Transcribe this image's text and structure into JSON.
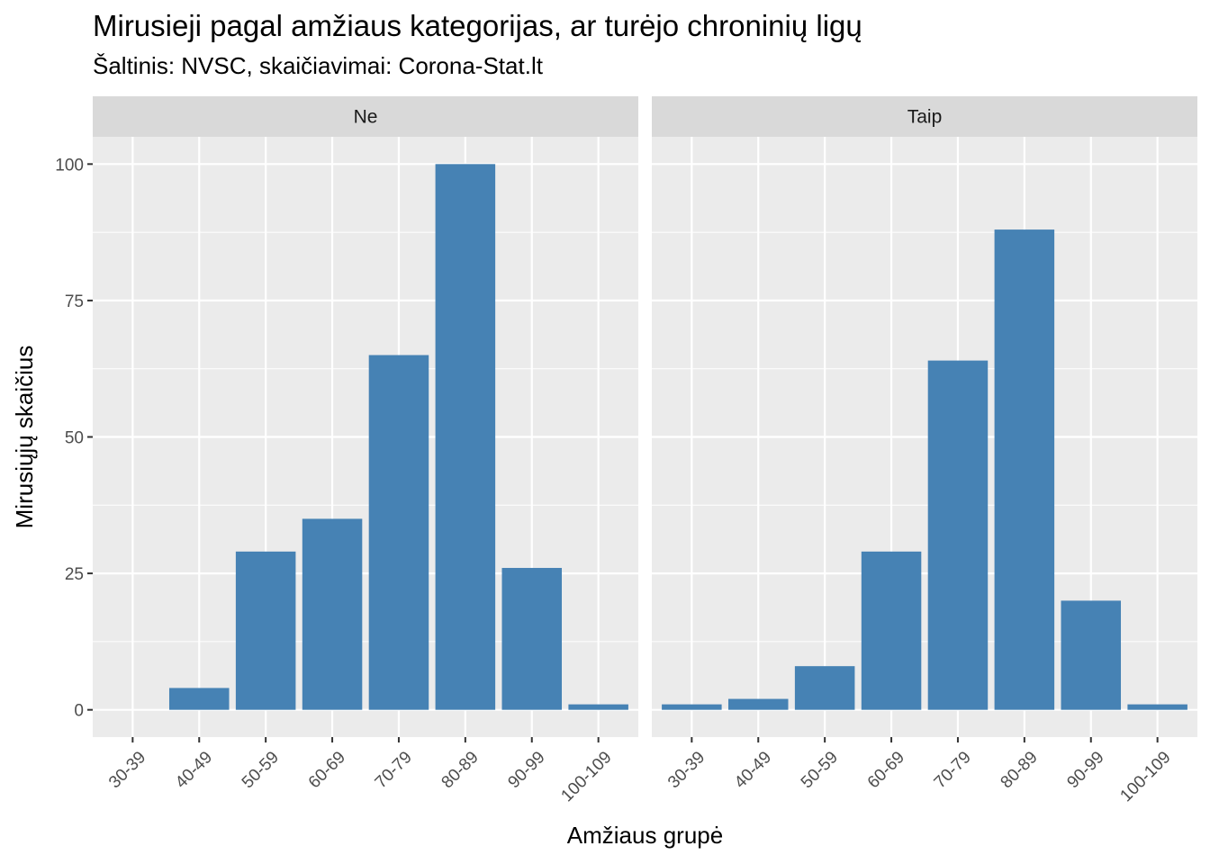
{
  "title": "Mirusieji pagal amžiaus kategorijas, ar turėjo chroninių ligų",
  "subtitle": "Šaltinis: NVSC, skaičiavimai: Corona-Stat.lt",
  "colors": {
    "bar": "#4682b4",
    "panel_bg": "#ebebeb",
    "strip_bg": "#d9d9d9",
    "grid": "#ffffff"
  },
  "chart_data": {
    "type": "bar",
    "title": "Mirusieji pagal amžiaus kategorijas, ar turėjo chroninių ligų",
    "subtitle": "Šaltinis: NVSC, skaičiavimai: Corona-Stat.lt",
    "xlabel": "Amžiaus grupė",
    "ylabel": "Mirusiųjų skaičius",
    "ylim": [
      -5,
      105
    ],
    "yticks": [
      0,
      25,
      50,
      75,
      100
    ],
    "grid": true,
    "categories": [
      "30-39",
      "40-49",
      "50-59",
      "60-69",
      "70-79",
      "80-89",
      "90-99",
      "100-109"
    ],
    "facets": [
      {
        "name": "Ne",
        "values": [
          0,
          4,
          29,
          35,
          65,
          100,
          26,
          1
        ]
      },
      {
        "name": "Taip",
        "values": [
          1,
          2,
          8,
          29,
          64,
          88,
          20,
          1
        ]
      }
    ]
  }
}
